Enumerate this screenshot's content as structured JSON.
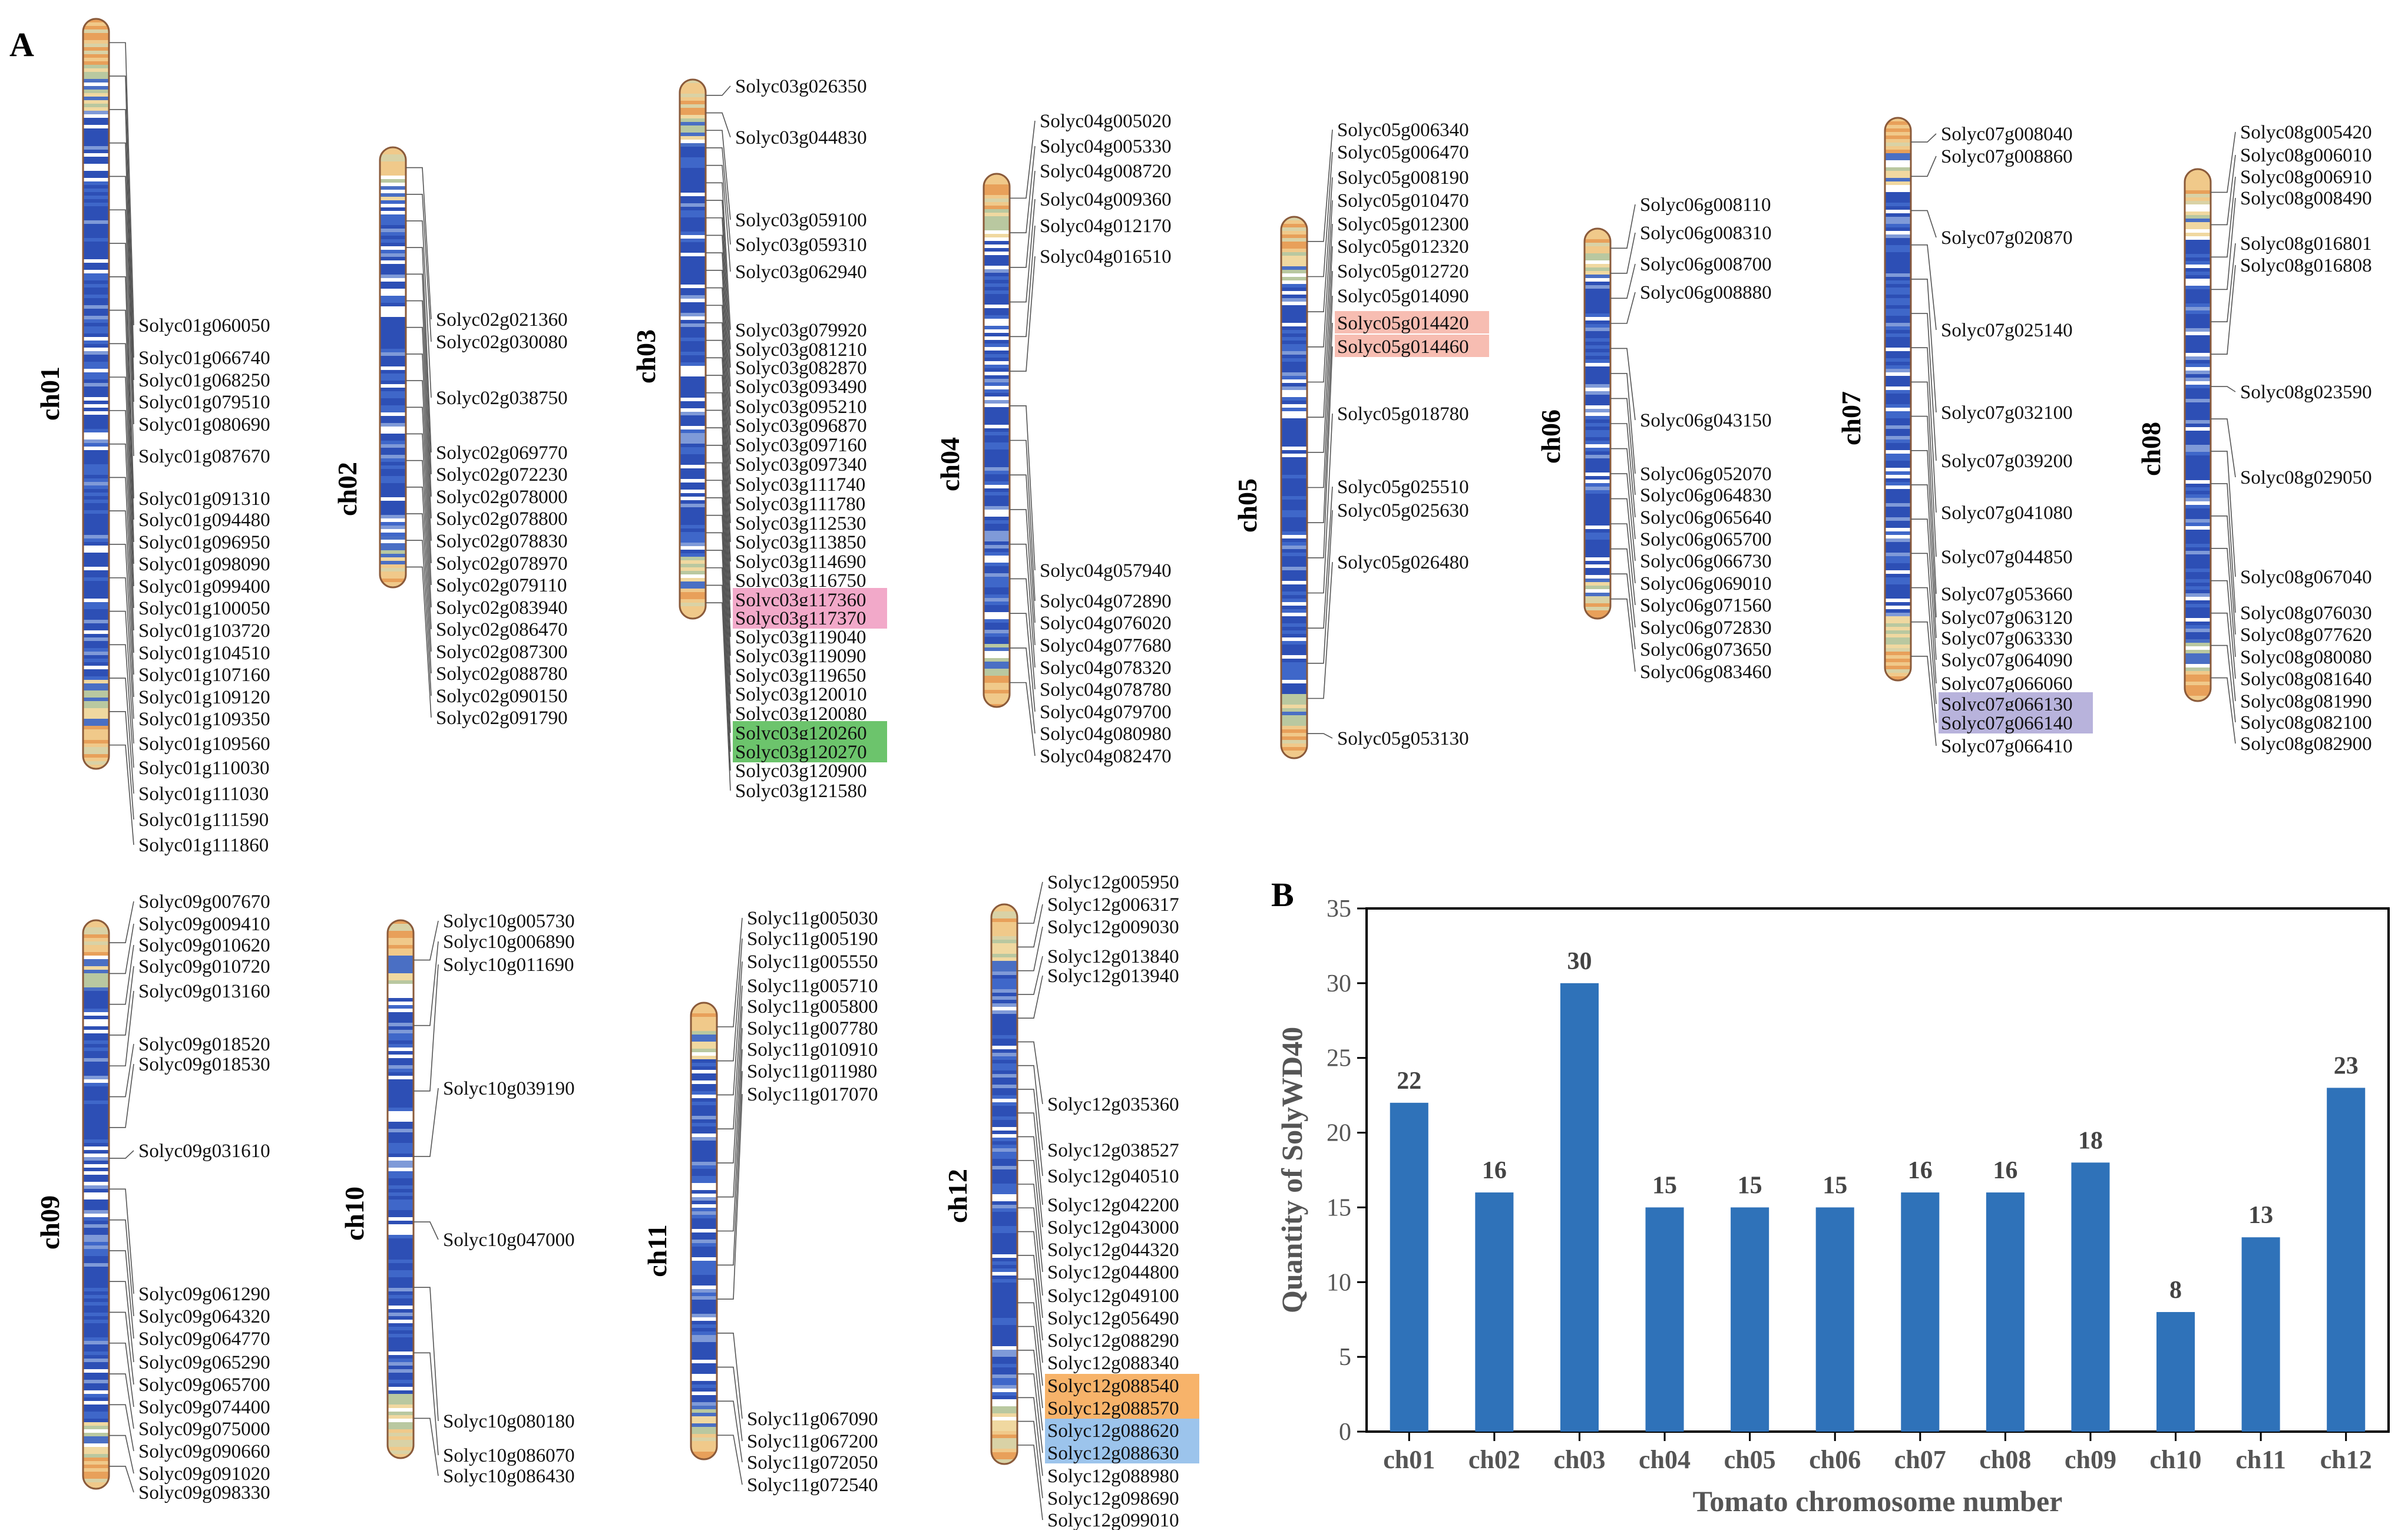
{
  "panel_a": {
    "letter": "A",
    "chromosomes": [
      {
        "name": "ch01",
        "genes": [
          "Solyc01g060050",
          "Solyc01g066740",
          "Solyc01g068250",
          "Solyc01g079510",
          "Solyc01g080690",
          "Solyc01g087670",
          "Solyc01g091310",
          "Solyc01g094480",
          "Solyc01g096950",
          "Solyc01g098090",
          "Solyc01g099400",
          "Solyc01g100050",
          "Solyc01g103720",
          "Solyc01g104510",
          "Solyc01g107160",
          "Solyc01g109120",
          "Solyc01g109350",
          "Solyc01g109560",
          "Solyc01g110030",
          "Solyc01g111030",
          "Solyc01g111590",
          "Solyc01g111860"
        ]
      },
      {
        "name": "ch02",
        "genes": [
          "Solyc02g021360",
          "Solyc02g030080",
          "Solyc02g038750",
          "Solyc02g069770",
          "Solyc02g072230",
          "Solyc02g078000",
          "Solyc02g078800",
          "Solyc02g078830",
          "Solyc02g078970",
          "Solyc02g079110",
          "Solyc02g083940",
          "Solyc02g086470",
          "Solyc02g087300",
          "Solyc02g088780",
          "Solyc02g090150",
          "Solyc02g091790"
        ]
      },
      {
        "name": "ch03",
        "genes": [
          "Solyc03g026350",
          "Solyc03g044830",
          "Solyc03g059100",
          "Solyc03g059310",
          "Solyc03g062940",
          "Solyc03g079920",
          "Solyc03g081210",
          "Solyc03g082870",
          "Solyc03g093490",
          "Solyc03g095210",
          "Solyc03g096870",
          "Solyc03g097160",
          "Solyc03g097340",
          "Solyc03g111740",
          "Solyc03g111780",
          "Solyc03g112530",
          "Solyc03g113850",
          "Solyc03g114690",
          "Solyc03g116750",
          "Solyc03g117360",
          "Solyc03g117370",
          "Solyc03g119040",
          "Solyc03g119090",
          "Solyc03g119650",
          "Solyc03g120010",
          "Solyc03g120080",
          "Solyc03g120260",
          "Solyc03g120270",
          "Solyc03g120900",
          "Solyc03g121580"
        ]
      },
      {
        "name": "ch04",
        "genes": [
          "Solyc04g005020",
          "Solyc04g005330",
          "Solyc04g008720",
          "Solyc04g009360",
          "Solyc04g012170",
          "Solyc04g016510",
          "Solyc04g057940",
          "Solyc04g072890",
          "Solyc04g076020",
          "Solyc04g077680",
          "Solyc04g078320",
          "Solyc04g078780",
          "Solyc04g079700",
          "Solyc04g080980",
          "Solyc04g082470"
        ]
      },
      {
        "name": "ch05",
        "genes": [
          "Solyc05g006340",
          "Solyc05g006470",
          "Solyc05g008190",
          "Solyc05g010470",
          "Solyc05g012300",
          "Solyc05g012320",
          "Solyc05g012720",
          "Solyc05g014090",
          "Solyc05g014420",
          "Solyc05g014460",
          "Solyc05g018780",
          "Solyc05g025510",
          "Solyc05g025630",
          "Solyc05g026480",
          "Solyc05g053130"
        ]
      },
      {
        "name": "ch06",
        "genes": [
          "Solyc06g008110",
          "Solyc06g008310",
          "Solyc06g008700",
          "Solyc06g008880",
          "Solyc06g043150",
          "Solyc06g052070",
          "Solyc06g064830",
          "Solyc06g065640",
          "Solyc06g065700",
          "Solyc06g066730",
          "Solyc06g069010",
          "Solyc06g071560",
          "Solyc06g072830",
          "Solyc06g073650",
          "Solyc06g083460"
        ]
      },
      {
        "name": "ch07",
        "genes": [
          "Solyc07g008040",
          "Solyc07g008860",
          "Solyc07g020870",
          "Solyc07g025140",
          "Solyc07g032100",
          "Solyc07g039200",
          "Solyc07g041080",
          "Solyc07g044850",
          "Solyc07g053660",
          "Solyc07g063120",
          "Solyc07g063330",
          "Solyc07g064090",
          "Solyc07g066060",
          "Solyc07g066130",
          "Solyc07g066140",
          "Solyc07g066410"
        ]
      },
      {
        "name": "ch08",
        "genes": [
          "Solyc08g005420",
          "Solyc08g006010",
          "Solyc08g006910",
          "Solyc08g008490",
          "Solyc08g016801",
          "Solyc08g016808",
          "Solyc08g023590",
          "Solyc08g029050",
          "Solyc08g067040",
          "Solyc08g076030",
          "Solyc08g077620",
          "Solyc08g080080",
          "Solyc08g081640",
          "Solyc08g081990",
          "Solyc08g082100",
          "Solyc08g082900"
        ]
      },
      {
        "name": "ch09",
        "genes": [
          "Solyc09g007670",
          "Solyc09g009410",
          "Solyc09g010620",
          "Solyc09g010720",
          "Solyc09g013160",
          "Solyc09g018520",
          "Solyc09g018530",
          "Solyc09g031610",
          "Solyc09g061290",
          "Solyc09g064320",
          "Solyc09g064770",
          "Solyc09g065290",
          "Solyc09g065700",
          "Solyc09g074400",
          "Solyc09g075000",
          "Solyc09g090660",
          "Solyc09g091020",
          "Solyc09g098330"
        ]
      },
      {
        "name": "ch10",
        "genes": [
          "Solyc10g005730",
          "Solyc10g006890",
          "Solyc10g011690",
          "Solyc10g039190",
          "Solyc10g047000",
          "Solyc10g080180",
          "Solyc10g086070",
          "Solyc10g086430"
        ]
      },
      {
        "name": "ch11",
        "genes": [
          "Solyc11g005030",
          "Solyc11g005190",
          "Solyc11g005550",
          "Solyc11g005710",
          "Solyc11g005800",
          "Solyc11g007780",
          "Solyc11g010910",
          "Solyc11g011980",
          "Solyc11g017070",
          "Solyc11g067090",
          "Solyc11g067200",
          "Solyc11g072050",
          "Solyc11g072540"
        ]
      },
      {
        "name": "ch12",
        "genes": [
          "Solyc12g005950",
          "Solyc12g006317",
          "Solyc12g009030",
          "Solyc12g013840",
          "Solyc12g013940",
          "Solyc12g035360",
          "Solyc12g038527",
          "Solyc12g040510",
          "Solyc12g042200",
          "Solyc12g043000",
          "Solyc12g044320",
          "Solyc12g044800",
          "Solyc12g049100",
          "Solyc12g056490",
          "Solyc12g088290",
          "Solyc12g088340",
          "Solyc12g088540",
          "Solyc12g088570",
          "Solyc12g088620",
          "Solyc12g088630",
          "Solyc12g088980",
          "Solyc12g098690",
          "Solyc12g099010"
        ]
      }
    ],
    "highlights": [
      {
        "genes": [
          "Solyc03g117360",
          "Solyc03g117370"
        ],
        "color": "#f2a9c9"
      },
      {
        "genes": [
          "Solyc03g120260",
          "Solyc03g120270"
        ],
        "color": "#6cc46c"
      },
      {
        "genes": [
          "Solyc05g014420",
          "Solyc05g014460"
        ],
        "color": "#f7bdb2"
      },
      {
        "genes": [
          "Solyc07g066130",
          "Solyc07g066140"
        ],
        "color": "#b8b3dc"
      },
      {
        "genes": [
          "Solyc12g088540",
          "Solyc12g088570"
        ],
        "color": "#f7b36a"
      },
      {
        "genes": [
          "Solyc12g088620",
          "Solyc12g088630"
        ],
        "color": "#9cc4ec"
      }
    ]
  },
  "chart_data": {
    "type": "bar",
    "panel_letter": "B",
    "categories": [
      "ch01",
      "ch02",
      "ch03",
      "ch04",
      "ch05",
      "ch06",
      "ch07",
      "ch08",
      "ch09",
      "ch10",
      "ch11",
      "ch12"
    ],
    "values": [
      22,
      16,
      30,
      15,
      15,
      15,
      16,
      16,
      18,
      8,
      13,
      23
    ],
    "data_labels": [
      "22",
      "16",
      "30",
      "15",
      "15",
      "15",
      "16",
      "16",
      "18",
      "8",
      "13",
      "23"
    ],
    "xlabel": "Tomato chromosome number",
    "ylabel": "Quantity of SolyWD40",
    "ylim": [
      0,
      35
    ],
    "yticks": [
      0,
      5,
      10,
      15,
      20,
      25,
      30,
      35
    ],
    "grid": false,
    "bar_color": "#2f72b9"
  }
}
